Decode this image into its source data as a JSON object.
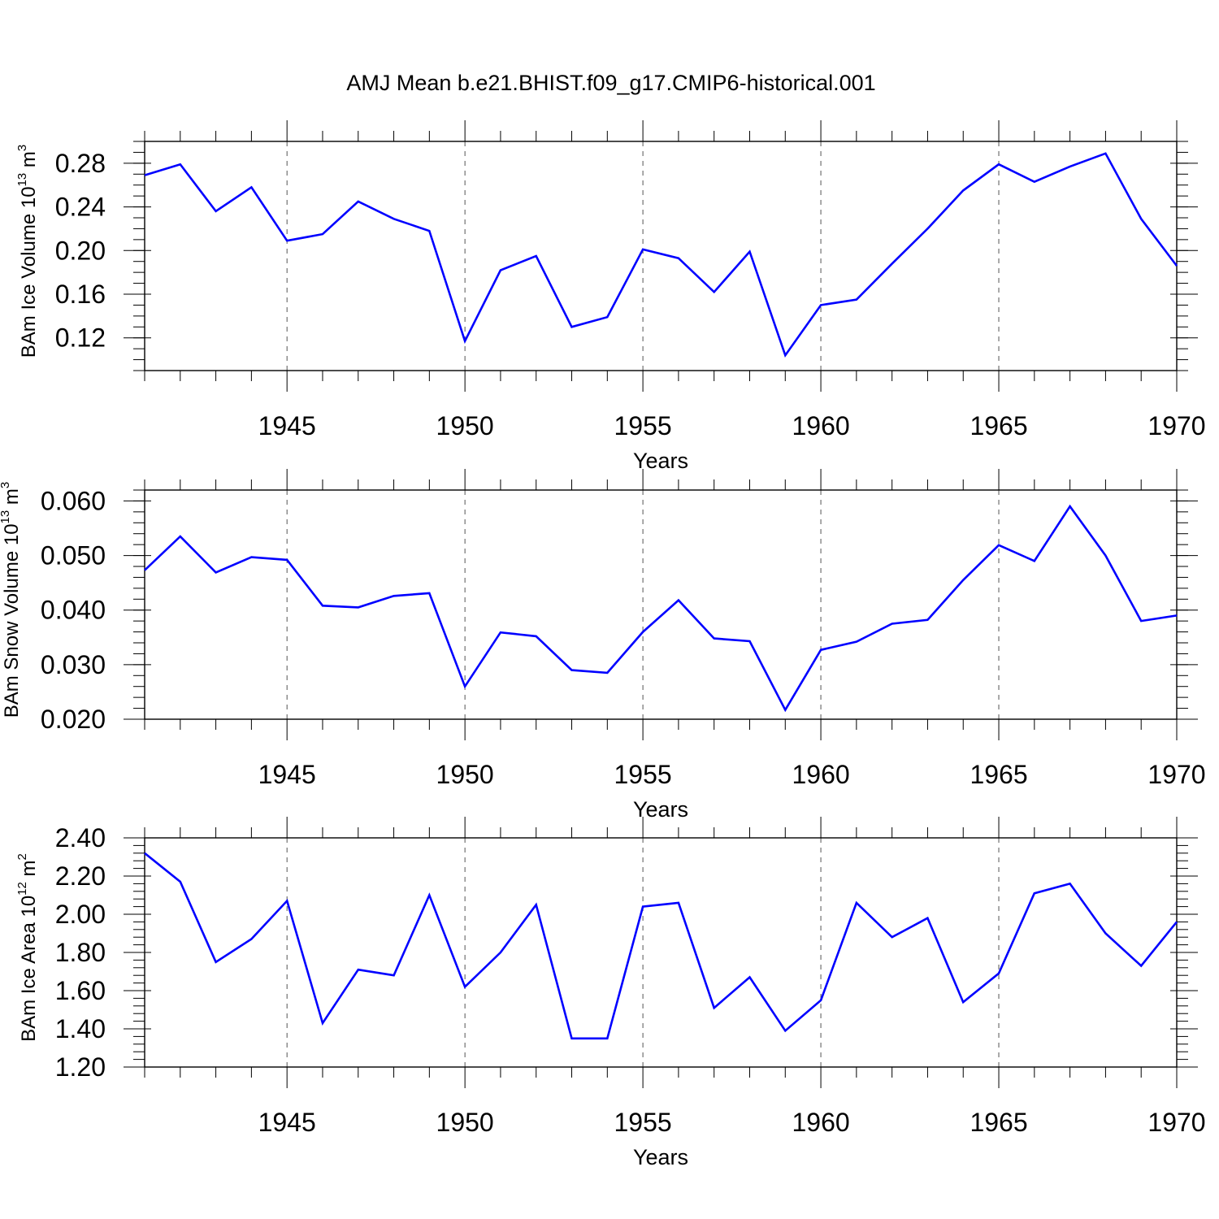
{
  "title": "AMJ Mean b.e21.BHIST.f09_g17.CMIP6-historical.001",
  "colors": {
    "series": "#0000ff",
    "axis": "#000000",
    "grid": "#555555"
  },
  "chart_data": [
    {
      "type": "line",
      "ylabel_main": "BAm Ice Volume 10",
      "ylabel_exp": "13",
      "ylabel_unit": " m",
      "ylabel_unit_exp": "3",
      "xlabel": "Years",
      "xlim": [
        1941,
        1970
      ],
      "ylim": [
        0.09,
        0.3
      ],
      "yticks": [
        0.12,
        0.16,
        0.2,
        0.24,
        0.28
      ],
      "ytick_labels": [
        "0.12",
        "0.16",
        "0.20",
        "0.24",
        "0.28"
      ],
      "ytick_minor_step": 0.01,
      "xticks": [
        1945,
        1950,
        1955,
        1960,
        1965,
        1970
      ],
      "xtick_labels": [
        "1945",
        "1950",
        "1955",
        "1960",
        "1965",
        "1970"
      ],
      "grid": "vertical dashed at major x ticks",
      "x": [
        1941,
        1942,
        1943,
        1944,
        1945,
        1946,
        1947,
        1948,
        1949,
        1950,
        1951,
        1952,
        1953,
        1954,
        1955,
        1956,
        1957,
        1958,
        1959,
        1960,
        1961,
        1962,
        1963,
        1964,
        1965,
        1966,
        1967,
        1968,
        1969,
        1970
      ],
      "values": [
        0.269,
        0.279,
        0.236,
        0.258,
        0.209,
        0.215,
        0.245,
        0.229,
        0.218,
        0.117,
        0.182,
        0.195,
        0.13,
        0.139,
        0.201,
        0.193,
        0.162,
        0.199,
        0.104,
        0.15,
        0.155,
        0.188,
        0.22,
        0.255,
        0.279,
        0.263,
        0.277,
        0.289,
        0.229,
        0.186
      ]
    },
    {
      "type": "line",
      "ylabel_main": "BAm Snow Volume 10",
      "ylabel_exp": "13",
      "ylabel_unit": " m",
      "ylabel_unit_exp": "3",
      "xlabel": "Years",
      "xlim": [
        1941,
        1970
      ],
      "ylim": [
        0.02,
        0.062
      ],
      "yticks": [
        0.02,
        0.03,
        0.04,
        0.05,
        0.06
      ],
      "ytick_labels": [
        "0.020",
        "0.030",
        "0.040",
        "0.050",
        "0.060"
      ],
      "ytick_minor_step": 0.002,
      "xticks": [
        1945,
        1950,
        1955,
        1960,
        1965,
        1970
      ],
      "xtick_labels": [
        "1945",
        "1950",
        "1955",
        "1960",
        "1965",
        "1970"
      ],
      "grid": "vertical dashed at major x ticks",
      "x": [
        1941,
        1942,
        1943,
        1944,
        1945,
        1946,
        1947,
        1948,
        1949,
        1950,
        1951,
        1952,
        1953,
        1954,
        1955,
        1956,
        1957,
        1958,
        1959,
        1960,
        1961,
        1962,
        1963,
        1964,
        1965,
        1966,
        1967,
        1968,
        1969,
        1970
      ],
      "values": [
        0.0473,
        0.0535,
        0.0469,
        0.0497,
        0.0492,
        0.0408,
        0.0405,
        0.0426,
        0.0431,
        0.026,
        0.0359,
        0.0352,
        0.029,
        0.0285,
        0.036,
        0.0418,
        0.0348,
        0.0343,
        0.0217,
        0.0327,
        0.0342,
        0.0375,
        0.0382,
        0.0455,
        0.0519,
        0.049,
        0.059,
        0.05,
        0.038,
        0.039
      ]
    },
    {
      "type": "line",
      "ylabel_main": "BAm Ice Area 10",
      "ylabel_exp": "12",
      "ylabel_unit": " m",
      "ylabel_unit_exp": "2",
      "xlabel": "Years",
      "xlim": [
        1941,
        1970
      ],
      "ylim": [
        1.2,
        2.4
      ],
      "yticks": [
        1.2,
        1.4,
        1.6,
        1.8,
        2.0,
        2.2,
        2.4
      ],
      "ytick_labels": [
        "1.20",
        "1.40",
        "1.60",
        "1.80",
        "2.00",
        "2.20",
        "2.40"
      ],
      "ytick_minor_step": 0.04,
      "xticks": [
        1945,
        1950,
        1955,
        1960,
        1965,
        1970
      ],
      "xtick_labels": [
        "1945",
        "1950",
        "1955",
        "1960",
        "1965",
        "1970"
      ],
      "grid": "vertical dashed at major x ticks",
      "x": [
        1941,
        1942,
        1943,
        1944,
        1945,
        1946,
        1947,
        1948,
        1949,
        1950,
        1951,
        1952,
        1953,
        1954,
        1955,
        1956,
        1957,
        1958,
        1959,
        1960,
        1961,
        1962,
        1963,
        1964,
        1965,
        1966,
        1967,
        1968,
        1969,
        1970
      ],
      "values": [
        2.32,
        2.17,
        1.75,
        1.87,
        2.07,
        1.43,
        1.71,
        1.68,
        2.1,
        1.62,
        1.8,
        2.05,
        1.35,
        1.35,
        2.04,
        2.06,
        1.51,
        1.67,
        1.39,
        1.55,
        2.06,
        1.88,
        1.98,
        1.54,
        1.69,
        2.11,
        2.16,
        1.9,
        1.73,
        1.96
      ]
    }
  ]
}
